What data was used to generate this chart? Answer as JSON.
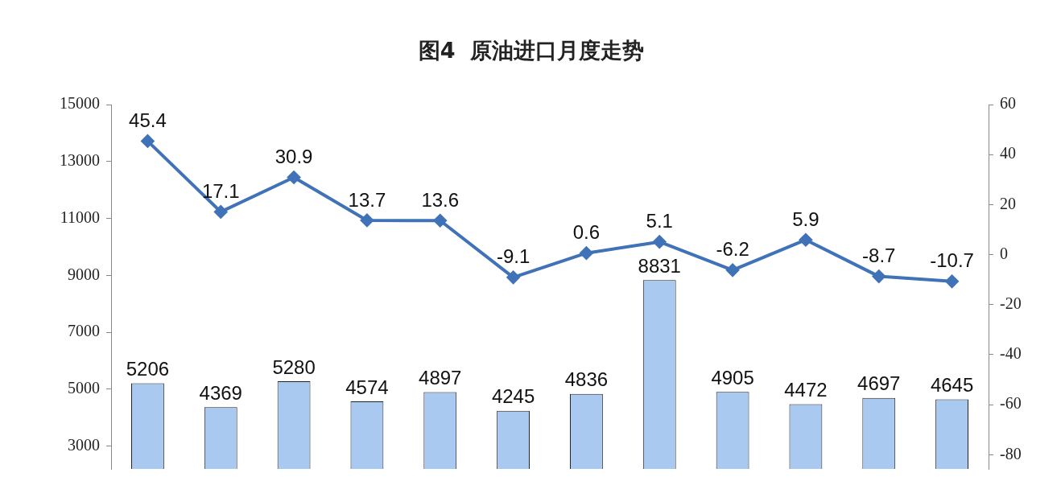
{
  "chart_data": {
    "type": "bar",
    "title": "图4  原油进口月度走势",
    "categories": [
      null,
      null,
      null,
      null,
      null,
      null,
      null,
      null,
      null,
      null,
      null,
      null
    ],
    "series": [
      {
        "color": "#a9c9f0",
        "values": [
          5206,
          4369,
          5280,
          4574,
          4897,
          4245,
          4836,
          8831,
          4905,
          4472,
          4697,
          4645
        ]
      },
      {
        "type": "line",
        "axis": "y2",
        "color": "#4072b8",
        "marker": "diamond",
        "values": [
          45.4,
          17.1,
          30.9,
          13.7,
          13.6,
          -9.1,
          0.6,
          5.1,
          -6.2,
          5.9,
          -8.7,
          -10.7
        ]
      }
    ],
    "ylim": [
      2200,
      15000
    ],
    "yticks": [
      3000,
      5000,
      7000,
      9000,
      11000,
      13000,
      15000
    ],
    "y2lim": [
      -85.7,
      60
    ],
    "y2ticks": [
      -80,
      -60,
      -40,
      -20,
      0,
      20,
      40,
      60
    ],
    "data_labels": true,
    "grid": false,
    "legend": false
  }
}
